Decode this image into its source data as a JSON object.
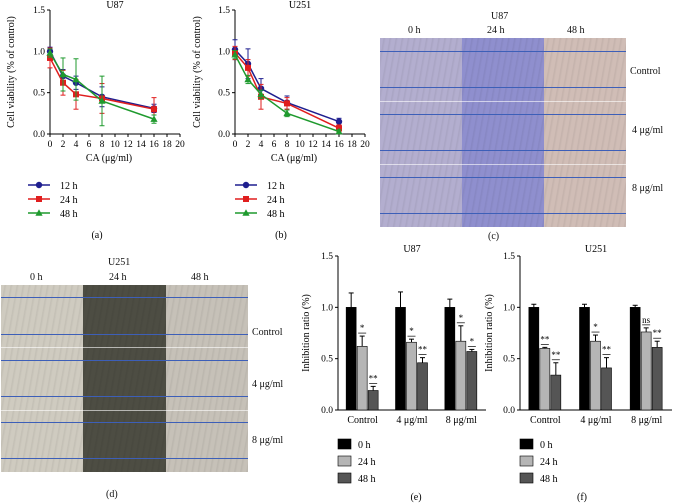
{
  "chart_data": [
    {
      "id": "a",
      "type": "line",
      "title": "U87",
      "xlabel": "CA (μg/ml)",
      "ylabel": "Cell viability (% of control)",
      "xlim": [
        0,
        20
      ],
      "ylim": [
        0,
        1.5
      ],
      "xticks": [
        "0",
        "2",
        "4",
        "6",
        "8",
        "10",
        "12",
        "14",
        "16",
        "18",
        "20"
      ],
      "yticks": [
        "0.0",
        "0.5",
        "1.0",
        "1.5"
      ],
      "x": [
        0,
        2,
        4,
        8,
        16
      ],
      "series": [
        {
          "name": "12 h",
          "color": "#1f1f8f",
          "marker": "circle",
          "values": [
            1.0,
            0.7,
            0.62,
            0.45,
            0.31
          ],
          "err": [
            0.05,
            0.08,
            0.08,
            0.12,
            0.05
          ]
        },
        {
          "name": "24 h",
          "color": "#e01e1e",
          "marker": "square",
          "values": [
            0.92,
            0.62,
            0.48,
            0.43,
            0.3
          ],
          "err": [
            0.12,
            0.15,
            0.18,
            0.18,
            0.14
          ]
        },
        {
          "name": "48 h",
          "color": "#1f9a2e",
          "marker": "triangle",
          "values": [
            0.98,
            0.72,
            0.66,
            0.4,
            0.18
          ],
          "err": [
            0.05,
            0.2,
            0.25,
            0.3,
            0.05
          ]
        }
      ],
      "caption": "(a)"
    },
    {
      "id": "b",
      "type": "line",
      "title": "U251",
      "xlabel": "CA (μg/ml)",
      "ylabel": "Cell viability (% of control)",
      "xlim": [
        0,
        20
      ],
      "ylim": [
        0,
        1.5
      ],
      "xticks": [
        "0",
        "2",
        "4",
        "6",
        "8",
        "10",
        "12",
        "14",
        "16",
        "18",
        "20"
      ],
      "yticks": [
        "0.0",
        "0.5",
        "1.0",
        "1.5"
      ],
      "x": [
        0,
        2,
        4,
        8,
        16
      ],
      "series": [
        {
          "name": "12 h",
          "color": "#1f1f8f",
          "marker": "circle",
          "values": [
            1.02,
            0.85,
            0.55,
            0.38,
            0.15
          ],
          "err": [
            0.12,
            0.18,
            0.12,
            0.08,
            0.04
          ]
        },
        {
          "name": "24 h",
          "color": "#e01e1e",
          "marker": "square",
          "values": [
            0.98,
            0.8,
            0.45,
            0.37,
            0.07
          ],
          "err": [
            0.08,
            0.1,
            0.15,
            0.07,
            0.04
          ]
        },
        {
          "name": "48 h",
          "color": "#1f9a2e",
          "marker": "triangle",
          "values": [
            0.96,
            0.66,
            0.48,
            0.25,
            0.03
          ],
          "err": [
            0.05,
            0.05,
            0.05,
            0.04,
            0.02
          ]
        }
      ],
      "caption": "(b)"
    },
    {
      "id": "e",
      "type": "bar",
      "title": "U87",
      "ylabel": "Inhibition ratio (%)",
      "ylim": [
        0,
        1.5
      ],
      "yticks": [
        "0.0",
        "0.5",
        "1.0",
        "1.5"
      ],
      "categories": [
        "Control",
        "4 μg/ml",
        "8 μg/ml"
      ],
      "series": [
        {
          "name": "0 h",
          "color": "#000000",
          "values": [
            1.0,
            1.0,
            1.0
          ],
          "err": [
            0.14,
            0.15,
            0.08
          ],
          "sig": [
            "",
            "",
            ""
          ]
        },
        {
          "name": "24 h",
          "color": "#b5b5b5",
          "values": [
            0.62,
            0.66,
            0.67
          ],
          "err": [
            0.1,
            0.03,
            0.15
          ],
          "sig": [
            "*",
            "*",
            "*"
          ]
        },
        {
          "name": "48 h",
          "color": "#555555",
          "values": [
            0.19,
            0.46,
            0.57
          ],
          "err": [
            0.04,
            0.05,
            0.02
          ],
          "sig": [
            "**",
            "**",
            "*"
          ]
        }
      ],
      "caption": "(e)"
    },
    {
      "id": "f",
      "type": "bar",
      "title": "U251",
      "ylabel": "Inhibition ratio (%)",
      "ylim": [
        0,
        1.5
      ],
      "yticks": [
        "0.0",
        "0.5",
        "1.0",
        "1.5"
      ],
      "categories": [
        "Control",
        "4 μg/ml",
        "8 μg/ml"
      ],
      "series": [
        {
          "name": "0 h",
          "color": "#000000",
          "values": [
            1.0,
            1.0,
            1.0
          ],
          "err": [
            0.03,
            0.03,
            0.02
          ],
          "sig": [
            "",
            "",
            ""
          ]
        },
        {
          "name": "24 h",
          "color": "#b5b5b5",
          "values": [
            0.6,
            0.67,
            0.76
          ],
          "err": [
            0.01,
            0.06,
            0.04
          ],
          "sig": [
            "**",
            "*",
            "ns"
          ]
        },
        {
          "name": "48 h",
          "color": "#555555",
          "values": [
            0.34,
            0.41,
            0.61
          ],
          "err": [
            0.12,
            0.1,
            0.06
          ],
          "sig": [
            "**",
            "**",
            "**"
          ]
        }
      ],
      "caption": "(f)"
    }
  ],
  "micrographs": [
    {
      "id": "c",
      "title": "U87",
      "time_labels": [
        "0 h",
        "24 h",
        "48 h"
      ],
      "row_labels": [
        "Control",
        "4 μg/ml",
        "8 μg/ml"
      ],
      "column_colors": [
        "#b3aecf",
        "#8f8fce",
        "#d0bdb6"
      ],
      "caption": "(c)"
    },
    {
      "id": "d",
      "title": "U251",
      "time_labels": [
        "0 h",
        "24 h",
        "48 h"
      ],
      "row_labels": [
        "Control",
        "4 μg/ml",
        "8 μg/ml"
      ],
      "column_colors": [
        "#cfcbc0",
        "#4d4d43",
        "#c6c1b8"
      ],
      "caption": "(d)"
    }
  ]
}
